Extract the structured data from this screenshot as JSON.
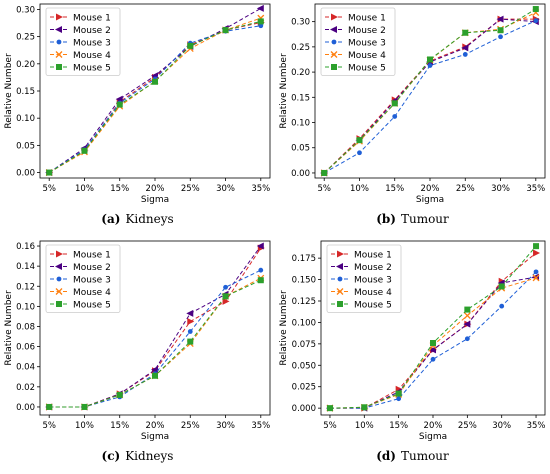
{
  "chart_data": [
    {
      "type": "line",
      "caption_label": "(a)",
      "caption_text": "Kidneys",
      "xlabel": "Sigma",
      "ylabel": "Relative Number",
      "categories": [
        "5%",
        "10%",
        "15%",
        "20%",
        "25%",
        "30%",
        "35%"
      ],
      "ylim": [
        -0.01,
        0.31
      ],
      "yticks": [
        0.0,
        0.05,
        0.1,
        0.15,
        0.2,
        0.25,
        0.3
      ],
      "ytick_labels": [
        "0.00",
        "0.05",
        "0.10",
        "0.15",
        "0.20",
        "0.25",
        "0.30"
      ],
      "legend_position": "top-left",
      "series": [
        {
          "name": "Mouse 1",
          "color": "#d62728",
          "marker": "triangle-right",
          "values": [
            0.0,
            0.04,
            0.13,
            0.175,
            0.235,
            0.262,
            0.276
          ]
        },
        {
          "name": "Mouse 2",
          "color": "#4b0082",
          "marker": "triangle-left",
          "values": [
            0.0,
            0.045,
            0.135,
            0.178,
            0.232,
            0.265,
            0.302
          ]
        },
        {
          "name": "Mouse 3",
          "color": "#1f5fd6",
          "marker": "dot",
          "values": [
            0.0,
            0.042,
            0.128,
            0.172,
            0.238,
            0.26,
            0.27
          ]
        },
        {
          "name": "Mouse 4",
          "color": "#ff7f0e",
          "marker": "x",
          "values": [
            0.0,
            0.038,
            0.122,
            0.168,
            0.228,
            0.262,
            0.284
          ]
        },
        {
          "name": "Mouse 5",
          "color": "#2ca02c",
          "marker": "square",
          "values": [
            0.0,
            0.04,
            0.125,
            0.167,
            0.233,
            0.262,
            0.278
          ]
        }
      ]
    },
    {
      "type": "line",
      "caption_label": "(b)",
      "caption_text": "Tumour",
      "xlabel": "Sigma",
      "ylabel": "Relative Number",
      "categories": [
        "5%",
        "10%",
        "15%",
        "20%",
        "25%",
        "30%",
        "35%"
      ],
      "ylim": [
        -0.01,
        0.335
      ],
      "yticks": [
        0.0,
        0.05,
        0.1,
        0.15,
        0.2,
        0.25,
        0.3
      ],
      "ytick_labels": [
        "0.00",
        "0.05",
        "0.10",
        "0.15",
        "0.20",
        "0.25",
        "0.30"
      ],
      "legend_position": "top-left",
      "series": [
        {
          "name": "Mouse 1",
          "color": "#d62728",
          "marker": "triangle-right",
          "values": [
            0.0,
            0.068,
            0.145,
            0.222,
            0.25,
            0.305,
            0.305
          ]
        },
        {
          "name": "Mouse 2",
          "color": "#4b0082",
          "marker": "triangle-left",
          "values": [
            0.0,
            0.065,
            0.143,
            0.22,
            0.248,
            0.305,
            0.3
          ]
        },
        {
          "name": "Mouse 3",
          "color": "#1f5fd6",
          "marker": "dot",
          "values": [
            0.0,
            0.04,
            0.112,
            0.213,
            0.235,
            0.27,
            0.302
          ]
        },
        {
          "name": "Mouse 4",
          "color": "#ff7f0e",
          "marker": "x",
          "values": [
            0.0,
            0.063,
            0.138,
            0.224,
            0.278,
            0.285,
            0.318
          ]
        },
        {
          "name": "Mouse 5",
          "color": "#2ca02c",
          "marker": "square",
          "values": [
            0.0,
            0.065,
            0.138,
            0.225,
            0.278,
            0.283,
            0.325
          ]
        }
      ]
    },
    {
      "type": "line",
      "caption_label": "(c)",
      "caption_text": "Kidneys",
      "xlabel": "Sigma",
      "ylabel": "Relative Number",
      "categories": [
        "5%",
        "10%",
        "15%",
        "20%",
        "25%",
        "30%",
        "35%"
      ],
      "ylim": [
        -0.008,
        0.165
      ],
      "yticks": [
        0.0,
        0.02,
        0.04,
        0.06,
        0.08,
        0.1,
        0.12,
        0.14,
        0.16
      ],
      "ytick_labels": [
        "0.00",
        "0.02",
        "0.04",
        "0.06",
        "0.08",
        "0.10",
        "0.12",
        "0.14",
        "0.16"
      ],
      "legend_position": "top-left",
      "series": [
        {
          "name": "Mouse 1",
          "color": "#d62728",
          "marker": "triangle-right",
          "values": [
            0.0,
            0.0,
            0.013,
            0.036,
            0.085,
            0.105,
            0.158
          ]
        },
        {
          "name": "Mouse 2",
          "color": "#4b0082",
          "marker": "triangle-left",
          "values": [
            0.0,
            0.0,
            0.013,
            0.037,
            0.093,
            0.112,
            0.16
          ]
        },
        {
          "name": "Mouse 3",
          "color": "#1f5fd6",
          "marker": "dot",
          "values": [
            0.0,
            0.0,
            0.01,
            0.033,
            0.075,
            0.119,
            0.136
          ]
        },
        {
          "name": "Mouse 4",
          "color": "#ff7f0e",
          "marker": "x",
          "values": [
            0.0,
            0.0,
            0.012,
            0.031,
            0.063,
            0.11,
            0.128
          ]
        },
        {
          "name": "Mouse 5",
          "color": "#2ca02c",
          "marker": "square",
          "values": [
            0.0,
            0.0,
            0.012,
            0.031,
            0.065,
            0.11,
            0.126
          ]
        }
      ]
    },
    {
      "type": "line",
      "caption_label": "(d)",
      "caption_text": "Tumour",
      "xlabel": "Sigma",
      "ylabel": "Relative Number",
      "categories": [
        "5%",
        "10%",
        "15%",
        "20%",
        "25%",
        "30%",
        "35%"
      ],
      "ylim": [
        -0.008,
        0.195
      ],
      "yticks": [
        0.0,
        0.025,
        0.05,
        0.075,
        0.1,
        0.125,
        0.15,
        0.175
      ],
      "ytick_labels": [
        "0.000",
        "0.025",
        "0.050",
        "0.075",
        "0.100",
        "0.125",
        "0.150",
        "0.175"
      ],
      "legend_position": "top-left",
      "series": [
        {
          "name": "Mouse 1",
          "color": "#d62728",
          "marker": "triangle-right",
          "values": [
            0.0,
            0.0,
            0.022,
            0.068,
            0.098,
            0.148,
            0.181
          ]
        },
        {
          "name": "Mouse 2",
          "color": "#4b0082",
          "marker": "triangle-left",
          "values": [
            0.0,
            0.0,
            0.019,
            0.068,
            0.098,
            0.146,
            0.153
          ]
        },
        {
          "name": "Mouse 3",
          "color": "#1f5fd6",
          "marker": "dot",
          "values": [
            0.0,
            0.0,
            0.011,
            0.057,
            0.081,
            0.119,
            0.159
          ]
        },
        {
          "name": "Mouse 4",
          "color": "#ff7f0e",
          "marker": "x",
          "values": [
            0.0,
            0.001,
            0.016,
            0.073,
            0.108,
            0.14,
            0.152
          ]
        },
        {
          "name": "Mouse 5",
          "color": "#2ca02c",
          "marker": "square",
          "values": [
            0.0,
            0.001,
            0.017,
            0.076,
            0.115,
            0.142,
            0.189
          ]
        }
      ]
    }
  ]
}
